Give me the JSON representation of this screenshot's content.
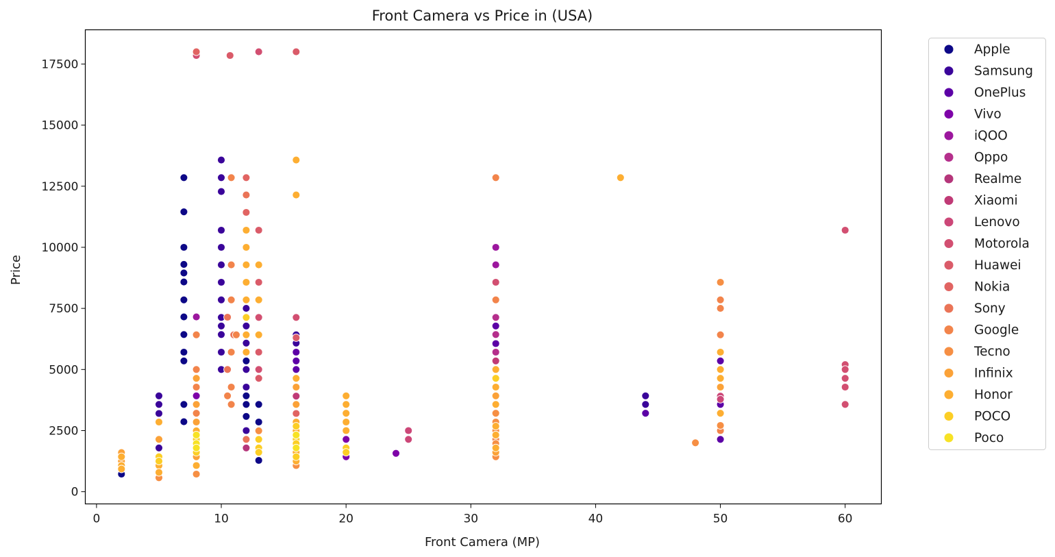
{
  "chart_data": {
    "type": "scatter",
    "title": "Front Camera vs Price in (USA)",
    "xlabel": "Front Camera (MP)",
    "ylabel": "Price",
    "xlim": [
      -0.9,
      62.9
    ],
    "ylim": [
      -500,
      18900
    ],
    "xticks": [
      0,
      10,
      20,
      30,
      40,
      50,
      60
    ],
    "yticks": [
      0,
      2500,
      5000,
      7500,
      10000,
      12500,
      15000,
      17500
    ],
    "grid": false,
    "legend_position": "outside-right",
    "series": [
      {
        "name": "Apple",
        "color": "#0d0887",
        "points": [
          [
            2,
            720
          ],
          [
            7,
            12850
          ],
          [
            7,
            11450
          ],
          [
            7,
            10000
          ],
          [
            7,
            9300
          ],
          [
            7,
            8950
          ],
          [
            7,
            8580
          ],
          [
            7,
            7850
          ],
          [
            7,
            7150
          ],
          [
            7,
            6430
          ],
          [
            7,
            5710
          ],
          [
            7,
            5350
          ],
          [
            7,
            3570
          ],
          [
            7,
            2860
          ],
          [
            12,
            6420
          ],
          [
            12,
            5350
          ],
          [
            12,
            3570
          ],
          [
            12,
            3920
          ],
          [
            12,
            3080
          ],
          [
            13,
            3570
          ],
          [
            13,
            2850
          ],
          [
            13,
            2150
          ],
          [
            13,
            1280
          ]
        ]
      },
      {
        "name": "Samsung",
        "color": "#3a049a",
        "points": [
          [
            5,
            3920
          ],
          [
            5,
            3570
          ],
          [
            5,
            3200
          ],
          [
            5,
            1790
          ],
          [
            10,
            13570
          ],
          [
            10,
            12850
          ],
          [
            10,
            12280
          ],
          [
            10,
            10700
          ],
          [
            10,
            10000
          ],
          [
            10,
            9280
          ],
          [
            10,
            8570
          ],
          [
            10,
            7850
          ],
          [
            10,
            7130
          ],
          [
            10,
            6780
          ],
          [
            10,
            6430
          ],
          [
            10,
            5710
          ],
          [
            10,
            5000
          ],
          [
            12,
            7500
          ],
          [
            12,
            7130
          ],
          [
            12,
            6780
          ],
          [
            12,
            6080
          ],
          [
            12,
            5710
          ],
          [
            12,
            5000
          ],
          [
            12,
            4280
          ],
          [
            12,
            2500
          ],
          [
            12,
            2140
          ],
          [
            16,
            6420
          ],
          [
            16,
            6080
          ],
          [
            44,
            3920
          ],
          [
            44,
            3570
          ]
        ]
      },
      {
        "name": "OnePlus",
        "color": "#5c01a6",
        "points": [
          [
            16,
            5710
          ],
          [
            16,
            5350
          ],
          [
            16,
            5000
          ],
          [
            16,
            4640
          ],
          [
            16,
            4280
          ],
          [
            32,
            6780
          ],
          [
            32,
            6420
          ],
          [
            32,
            6060
          ],
          [
            44,
            3210
          ],
          [
            50,
            5350
          ],
          [
            50,
            3570
          ],
          [
            50,
            2140
          ]
        ]
      },
      {
        "name": "Vivo",
        "color": "#7e03a8",
        "points": [
          [
            8,
            3920
          ],
          [
            8,
            3200
          ],
          [
            16,
            3570
          ],
          [
            16,
            3200
          ],
          [
            20,
            2140
          ],
          [
            20,
            1430
          ],
          [
            24,
            1570
          ],
          [
            32,
            5350
          ]
        ]
      },
      {
        "name": "iQOO",
        "color": "#9c179e",
        "points": [
          [
            8,
            7150
          ],
          [
            32,
            10000
          ],
          [
            32,
            9280
          ],
          [
            32,
            5000
          ]
        ]
      },
      {
        "name": "Oppo",
        "color": "#b52f8c",
        "points": [
          [
            16,
            2850
          ],
          [
            32,
            7130
          ],
          [
            32,
            6430
          ],
          [
            32,
            5710
          ]
        ]
      },
      {
        "name": "Realme",
        "color": "#b5367a",
        "points": [
          [
            12,
            1790
          ],
          [
            16,
            2490
          ],
          [
            16,
            1780
          ]
        ]
      },
      {
        "name": "Xiaomi",
        "color": "#c03a76",
        "points": [
          [
            16,
            3910
          ],
          [
            16,
            2140
          ],
          [
            32,
            5350
          ]
        ]
      },
      {
        "name": "Lenovo",
        "color": "#cc4778",
        "points": [
          [
            25,
            2500
          ],
          [
            25,
            2140
          ],
          [
            50,
            3910
          ],
          [
            50,
            3780
          ]
        ]
      },
      {
        "name": "Motorola",
        "color": "#d24f71",
        "points": [
          [
            8,
            17850
          ],
          [
            13,
            18000
          ],
          [
            16,
            7130
          ],
          [
            13,
            7130
          ],
          [
            13,
            5000
          ],
          [
            16,
            3570
          ],
          [
            32,
            8570
          ],
          [
            60,
            5200
          ],
          [
            60,
            5000
          ],
          [
            60,
            4640
          ],
          [
            60,
            4280
          ],
          [
            60,
            3570
          ],
          [
            60,
            10700
          ]
        ]
      },
      {
        "name": "Huawei",
        "color": "#da5b69",
        "points": [
          [
            10.7,
            17850
          ],
          [
            16,
            18000
          ],
          [
            13,
            10700
          ],
          [
            13,
            8570
          ],
          [
            13,
            5710
          ],
          [
            13,
            4640
          ],
          [
            16,
            6300
          ],
          [
            8,
            2850
          ]
        ]
      },
      {
        "name": "Nokia",
        "color": "#e16462",
        "points": [
          [
            8,
            18000
          ],
          [
            12,
            12850
          ],
          [
            12,
            11430
          ],
          [
            16,
            3200
          ],
          [
            8,
            2490
          ],
          [
            8,
            2140
          ]
        ]
      },
      {
        "name": "Sony",
        "color": "#ea7457",
        "points": [
          [
            12,
            12140
          ],
          [
            10.5,
            7140
          ],
          [
            10.5,
            5000
          ],
          [
            11,
            6420
          ],
          [
            8,
            4280
          ],
          [
            12,
            2140
          ]
        ]
      },
      {
        "name": "Google",
        "color": "#f2844b",
        "points": [
          [
            10.8,
            12850
          ],
          [
            10.8,
            9280
          ],
          [
            10.8,
            7850
          ],
          [
            11.2,
            6420
          ],
          [
            10.8,
            5710
          ],
          [
            10.8,
            4280
          ],
          [
            10.5,
            3920
          ],
          [
            10.8,
            3570
          ],
          [
            8,
            6420
          ],
          [
            8,
            5000
          ],
          [
            8,
            4280
          ],
          [
            8,
            3210
          ],
          [
            32,
            12850
          ],
          [
            32,
            7850
          ],
          [
            32,
            4280
          ],
          [
            32,
            3570
          ],
          [
            32,
            2140
          ],
          [
            50,
            7850
          ],
          [
            50,
            7500
          ],
          [
            50,
            6420
          ],
          [
            50,
            2500
          ]
        ]
      },
      {
        "name": "Tecno",
        "color": "#f68f44",
        "points": [
          [
            5,
            570
          ],
          [
            8,
            720
          ],
          [
            13,
            2490
          ],
          [
            16,
            1070
          ],
          [
            16,
            1430
          ],
          [
            32,
            3210
          ],
          [
            32,
            2850
          ],
          [
            32,
            2500
          ],
          [
            32,
            2320
          ],
          [
            32,
            1970
          ],
          [
            32,
            1430
          ],
          [
            48,
            2000
          ],
          [
            50,
            8570
          ],
          [
            50,
            2710
          ]
        ]
      },
      {
        "name": "Infinix",
        "color": "#fba238",
        "points": [
          [
            2,
            1600
          ],
          [
            2,
            1250
          ],
          [
            5,
            2140
          ],
          [
            8,
            4640
          ],
          [
            8,
            3570
          ],
          [
            8,
            2850
          ],
          [
            8,
            1430
          ],
          [
            16,
            4280
          ],
          [
            16,
            3570
          ],
          [
            16,
            2140
          ],
          [
            16,
            1790
          ],
          [
            32,
            4640
          ],
          [
            32,
            3920
          ],
          [
            32,
            1790
          ],
          [
            32,
            1610
          ],
          [
            50,
            4280
          ]
        ]
      },
      {
        "name": "Honor",
        "color": "#fdae32",
        "points": [
          [
            2,
            1430
          ],
          [
            2,
            1070
          ],
          [
            2,
            930
          ],
          [
            5,
            2850
          ],
          [
            5,
            1070
          ],
          [
            5,
            790
          ],
          [
            8,
            2490
          ],
          [
            8,
            1970
          ],
          [
            8,
            1790
          ],
          [
            8,
            1070
          ],
          [
            12,
            10700
          ],
          [
            12,
            10000
          ],
          [
            12,
            9280
          ],
          [
            12,
            8570
          ],
          [
            12,
            7850
          ],
          [
            12,
            6420
          ],
          [
            12,
            5710
          ],
          [
            13,
            9280
          ],
          [
            13,
            7850
          ],
          [
            13,
            6420
          ],
          [
            16,
            13570
          ],
          [
            16,
            12140
          ],
          [
            16,
            4640
          ],
          [
            16,
            2850
          ],
          [
            16,
            2490
          ],
          [
            16,
            2320
          ],
          [
            16,
            1970
          ],
          [
            16,
            1610
          ],
          [
            16,
            1250
          ],
          [
            20,
            3920
          ],
          [
            20,
            3570
          ],
          [
            20,
            3210
          ],
          [
            20,
            2850
          ],
          [
            20,
            2500
          ],
          [
            32,
            5000
          ],
          [
            32,
            4280
          ],
          [
            32,
            3570
          ],
          [
            32,
            2680
          ],
          [
            32,
            2320
          ],
          [
            32,
            1790
          ],
          [
            42,
            12850
          ],
          [
            50,
            5710
          ],
          [
            50,
            5000
          ],
          [
            50,
            4640
          ],
          [
            50,
            3210
          ]
        ]
      },
      {
        "name": "POCO",
        "color": "#fcce25",
        "points": [
          [
            5,
            1430
          ],
          [
            5,
            1250
          ],
          [
            8,
            2140
          ],
          [
            8,
            1610
          ],
          [
            12,
            7130
          ],
          [
            13,
            2140
          ],
          [
            13,
            1790
          ],
          [
            13,
            1610
          ],
          [
            16,
            2680
          ],
          [
            16,
            2140
          ],
          [
            16,
            1970
          ],
          [
            16,
            1430
          ],
          [
            20,
            1790
          ],
          [
            20,
            1610
          ],
          [
            32,
            4640
          ]
        ]
      },
      {
        "name": "Poco",
        "color": "#f7e225",
        "points": [
          [
            8,
            2320
          ],
          [
            8,
            1970
          ],
          [
            8,
            1790
          ],
          [
            16,
            2320
          ],
          [
            16,
            1790
          ]
        ]
      }
    ]
  }
}
